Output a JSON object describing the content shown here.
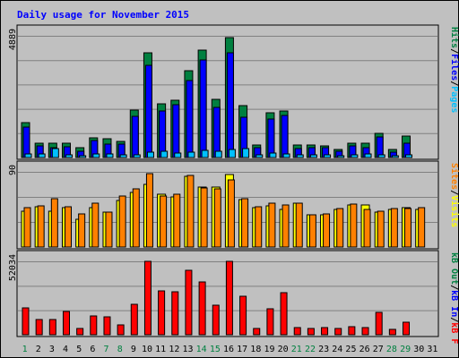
{
  "chart_data": [
    {
      "type": "bar",
      "title": "Daily usage for November 2015",
      "panel": "top",
      "y_max_label": "4889",
      "ylim": [
        0,
        4889
      ],
      "side_label": [
        "Pages",
        "/",
        "Files",
        "/",
        "Hits"
      ],
      "side_colors": [
        "#00c0ff",
        "#000000",
        "#0000ff",
        "#000000",
        "#008040"
      ],
      "categories": [
        "1",
        "2",
        "3",
        "4",
        "5",
        "6",
        "7",
        "8",
        "9",
        "10",
        "11",
        "12",
        "13",
        "14",
        "15",
        "16",
        "17",
        "18",
        "19",
        "20",
        "21",
        "22",
        "23",
        "24",
        "25",
        "26",
        "27",
        "28",
        "29",
        "30",
        "31"
      ],
      "series": [
        {
          "name": "Hits",
          "color": "#008040",
          "values": [
            1410,
            590,
            580,
            560,
            380,
            780,
            770,
            640,
            1920,
            4210,
            2140,
            2300,
            3480,
            4320,
            2330,
            4800,
            2090,
            510,
            1790,
            1880,
            500,
            490,
            460,
            330,
            590,
            590,
            980,
            310,
            850,
            0,
            0
          ]
        },
        {
          "name": "Files",
          "color": "#0000ff",
          "values": [
            1210,
            450,
            390,
            420,
            240,
            680,
            530,
            550,
            1640,
            3720,
            1860,
            2120,
            3080,
            3910,
            2020,
            4200,
            1620,
            410,
            1540,
            1690,
            360,
            410,
            390,
            240,
            460,
            410,
            810,
            230,
            570,
            0,
            0
          ]
        },
        {
          "name": "Pages",
          "color": "#00c0ff",
          "values": [
            130,
            130,
            370,
            110,
            60,
            130,
            140,
            100,
            120,
            230,
            250,
            170,
            230,
            270,
            240,
            310,
            360,
            100,
            170,
            150,
            120,
            100,
            100,
            70,
            110,
            140,
            120,
            60,
            110,
            0,
            0
          ]
        }
      ]
    },
    {
      "type": "bar",
      "panel": "middle",
      "y_max_label": "90",
      "ylim": [
        0,
        90
      ],
      "side_label": [
        "Visits",
        "/",
        "Sites"
      ],
      "side_colors": [
        "#ffff00",
        "#000000",
        "#ff8000"
      ],
      "categories": [
        "1",
        "2",
        "3",
        "4",
        "5",
        "6",
        "7",
        "8",
        "9",
        "10",
        "11",
        "12",
        "13",
        "14",
        "15",
        "16",
        "17",
        "18",
        "19",
        "20",
        "21",
        "22",
        "23",
        "24",
        "25",
        "26",
        "27",
        "28",
        "29",
        "30",
        "31"
      ],
      "series": [
        {
          "name": "Visits",
          "color": "#ffff00",
          "values": [
            43,
            48,
            43,
            47,
            33,
            47,
            42,
            56,
            65,
            75,
            63,
            60,
            85,
            72,
            72,
            87,
            57,
            47,
            49,
            45,
            53,
            39,
            39,
            45,
            50,
            50,
            42,
            45,
            47,
            45,
            0
          ]
        },
        {
          "name": "Sites",
          "color": "#ff8000",
          "values": [
            47,
            49,
            58,
            48,
            40,
            53,
            42,
            61,
            70,
            88,
            61,
            63,
            86,
            71,
            70,
            80,
            58,
            48,
            53,
            50,
            52,
            39,
            40,
            46,
            51,
            45,
            43,
            46,
            46,
            47,
            0
          ]
        }
      ]
    },
    {
      "type": "bar",
      "panel": "bottom",
      "y_max_label": "52034",
      "ylim": [
        0,
        52034
      ],
      "side_label": [
        "kB F",
        "/",
        "kB In",
        "/",
        "kB Out"
      ],
      "side_colors": [
        "#ff0000",
        "#000000",
        "#0000ff",
        "#000000",
        "#008040"
      ],
      "categories": [
        "1",
        "2",
        "3",
        "4",
        "5",
        "6",
        "7",
        "8",
        "9",
        "10",
        "11",
        "12",
        "13",
        "14",
        "15",
        "16",
        "17",
        "18",
        "19",
        "20",
        "21",
        "22",
        "23",
        "24",
        "25",
        "26",
        "27",
        "28",
        "29",
        "30",
        "31"
      ],
      "series": [
        {
          "name": "kB F",
          "color": "#ff0000",
          "values": [
            19100,
            10600,
            10500,
            16200,
            4700,
            13500,
            12400,
            7200,
            21800,
            52000,
            30800,
            30600,
            45900,
            37400,
            21200,
            52000,
            27400,
            4300,
            18300,
            29600,
            4800,
            4700,
            4800,
            4700,
            5400,
            5300,
            16100,
            3900,
            9100,
            0,
            0
          ]
        }
      ],
      "x_label_colors": [
        "#008040",
        "#000000",
        "#000000",
        "#000000",
        "#000000",
        "#000000",
        "#008040",
        "#008040",
        "#000000",
        "#000000",
        "#000000",
        "#000000",
        "#000000",
        "#008040",
        "#008040",
        "#000000",
        "#000000",
        "#000000",
        "#000000",
        "#000000",
        "#008040",
        "#008040",
        "#000000",
        "#000000",
        "#000000",
        "#000000",
        "#000000",
        "#008040",
        "#008040",
        "#000000",
        "#000000"
      ]
    }
  ]
}
